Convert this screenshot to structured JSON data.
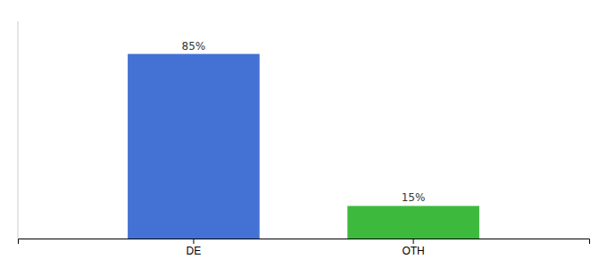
{
  "chart_data": {
    "type": "bar",
    "categories": [
      "DE",
      "OTH"
    ],
    "values": [
      85,
      15
    ],
    "value_labels": [
      "85%",
      "15%"
    ],
    "colors": [
      "#4472d4",
      "#3dba3d"
    ],
    "ylim": [
      0,
      100
    ],
    "data_labels": true,
    "tick_labels": "x"
  }
}
